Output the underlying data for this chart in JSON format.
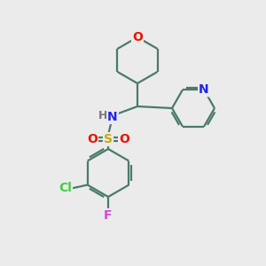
{
  "bg_color": "#ebebeb",
  "bond_color": "#4a7a6a",
  "bond_width": 1.6,
  "atom_colors": {
    "O": "#ee1100",
    "N": "#2222ee",
    "S": "#ccaa00",
    "Cl": "#44cc44",
    "F": "#dd44dd",
    "H": "#777777",
    "C": "#4a7a6a"
  },
  "font_size": 10
}
